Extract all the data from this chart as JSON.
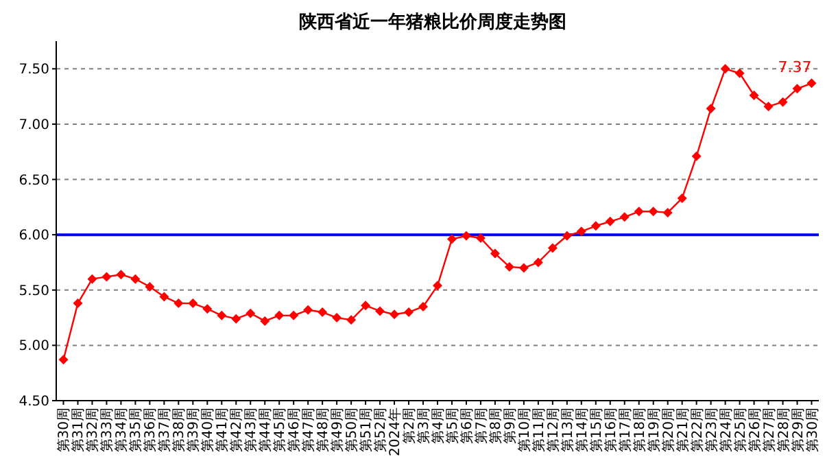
{
  "chart_data": {
    "type": "line",
    "title": "陕西省近一年猪粮比价周度走势图",
    "categories": [
      "第30周",
      "第31周",
      "第32周",
      "第33周",
      "第34周",
      "第35周",
      "第36周",
      "第37周",
      "第38周",
      "第39周",
      "第40周",
      "第41周",
      "第42周",
      "第43周",
      "第44周",
      "第45周",
      "第46周",
      "第47周",
      "第48周",
      "第49周",
      "第50周",
      "第51周",
      "第52周",
      "2024年",
      "第2周",
      "第3周",
      "第4周",
      "第5周",
      "第6周",
      "第7周",
      "第8周",
      "第9周",
      "第10周",
      "第11周",
      "第12周",
      "第13周",
      "第14周",
      "第15周",
      "第16周",
      "第17周",
      "第18周",
      "第19周",
      "第20周",
      "第21周",
      "第22周",
      "第23周",
      "第24周",
      "第25周",
      "第26周",
      "第27周",
      "第28周",
      "第29周",
      "第30周"
    ],
    "series": [
      {
        "color": "#ff0000",
        "values": [
          4.87,
          5.38,
          5.6,
          5.62,
          5.64,
          5.6,
          5.53,
          5.44,
          5.38,
          5.38,
          5.33,
          5.27,
          5.24,
          5.29,
          5.22,
          5.27,
          5.27,
          5.32,
          5.3,
          5.25,
          5.23,
          5.36,
          5.31,
          5.28,
          5.3,
          5.35,
          5.54,
          5.96,
          5.99,
          5.97,
          5.83,
          5.71,
          5.7,
          5.75,
          5.88,
          5.99,
          6.03,
          6.08,
          6.12,
          6.16,
          6.21,
          6.21,
          6.2,
          6.33,
          6.71,
          7.14,
          7.5,
          7.46,
          7.26,
          7.16,
          7.2,
          7.32,
          7.37
        ],
        "value_labels": [
          null,
          null,
          null,
          null,
          null,
          null,
          null,
          null,
          null,
          null,
          null,
          null,
          null,
          null,
          null,
          null,
          null,
          null,
          null,
          null,
          null,
          null,
          null,
          null,
          null,
          null,
          null,
          null,
          null,
          null,
          null,
          null,
          null,
          null,
          null,
          null,
          null,
          null,
          null,
          null,
          null,
          null,
          null,
          null,
          null,
          null,
          null,
          null,
          null,
          null,
          null,
          null,
          "7.37"
        ]
      }
    ],
    "ylim": [
      4.5,
      7.75
    ],
    "yticks": [
      {
        "value": 4.5,
        "label": "4.50"
      },
      {
        "value": 5,
        "label": "5.00"
      },
      {
        "value": 5.5,
        "label": "5.50"
      },
      {
        "value": 6,
        "label": "6.00"
      },
      {
        "value": 6.5,
        "label": "6.50"
      },
      {
        "value": 7,
        "label": "7.00"
      },
      {
        "value": 7.5,
        "label": "7.50"
      }
    ],
    "grid": "y",
    "marker": "diamond",
    "line_style": "solid",
    "ref_lines": [
      {
        "axis": "y",
        "value": 6,
        "color": "#0000ff"
      }
    ]
  }
}
